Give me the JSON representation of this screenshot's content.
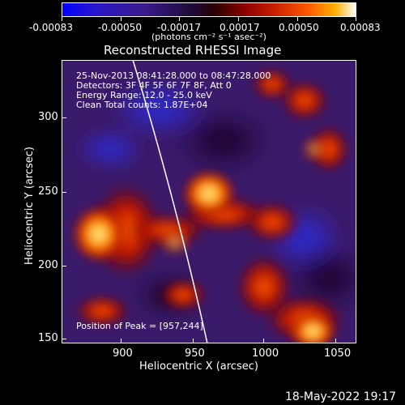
{
  "colorbar": {
    "tick_labels": [
      "-0.00083",
      "-0.00050",
      "-0.00017",
      "0.00017",
      "0.00050",
      "0.00083"
    ],
    "unit_label": "(photons cm⁻² s⁻¹ asec⁻²)",
    "colors": [
      "#0000ff",
      "#3a1a8a",
      "#1a0020",
      "#300000",
      "#c81e00",
      "#ff9a00",
      "#ffffff"
    ]
  },
  "title": "Reconstructed RHESSI Image",
  "info": {
    "line1": "25-Nov-2013 08:41:28.000 to 08:47:28.000",
    "line2": "Detectors: 3F 4F 5F 6F 7F 8F, Att 0",
    "line3": "Energy Range: 12.0 - 25.0 keV",
    "line4": "Clean     Total counts: 1.87E+04"
  },
  "peak_label": "Position of Peak = [957,244]",
  "axes": {
    "xlabel": "Heliocentric X (arcsec)",
    "ylabel": "Heliocentric Y (arcsec)",
    "xticks": [
      "900",
      "950",
      "1000",
      "1050"
    ],
    "yticks": [
      "300",
      "250",
      "200",
      "150"
    ],
    "xlim": [
      862,
      1052
    ],
    "ylim": [
      148,
      338
    ]
  },
  "timestamp": "18-May-2022 19:17"
}
